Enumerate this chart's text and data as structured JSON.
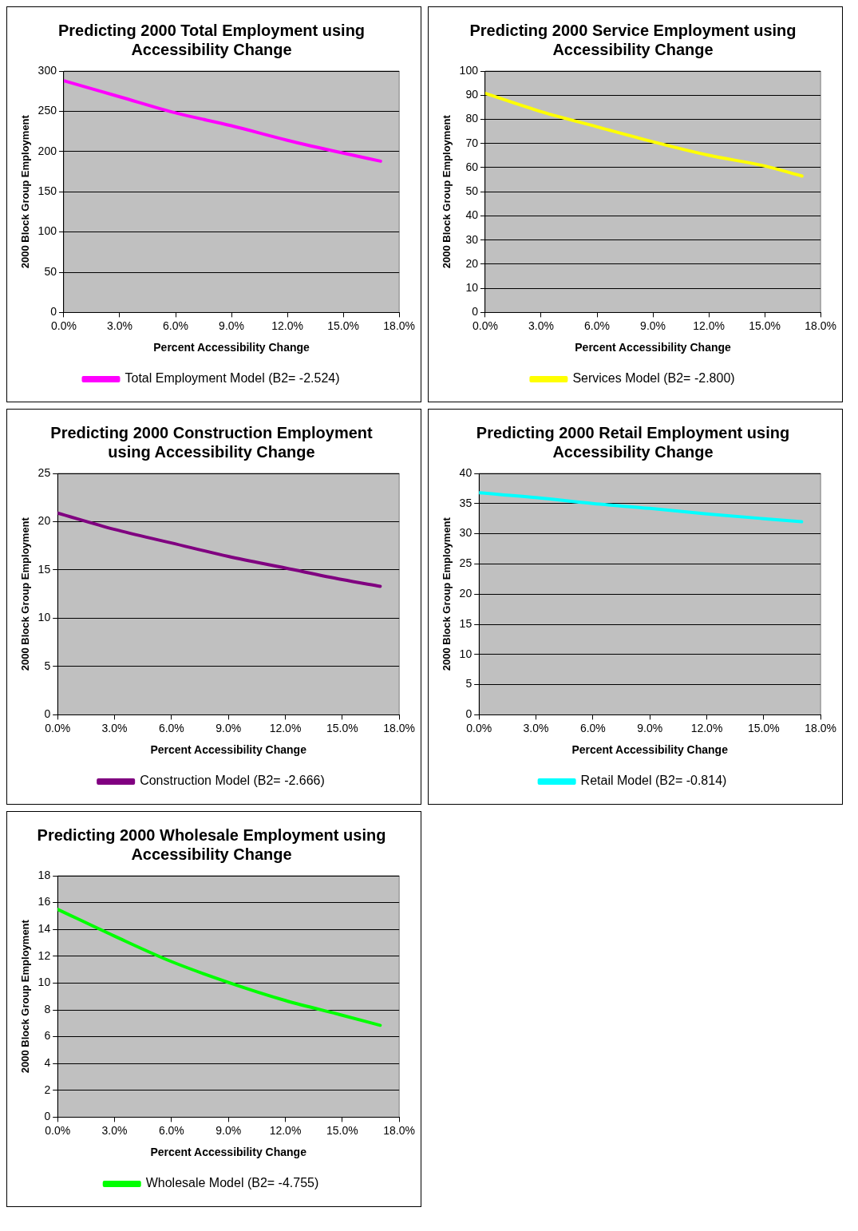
{
  "chart_data": [
    {
      "type": "line",
      "title": "Predicting 2000 Total Employment using Accessibility Change",
      "xlabel": "Percent Accessibility Change",
      "ylabel": "2000 Block Group Employment",
      "x": [
        0,
        3,
        6,
        9,
        12,
        15,
        17
      ],
      "series": [
        {
          "name": "Total Employment Model (B2= -2.524)",
          "color": "#ff00ff",
          "values": [
            288,
            268,
            248,
            232,
            214,
            198,
            188
          ]
        }
      ],
      "xlim": [
        0,
        18
      ],
      "xticks": [
        {
          "value": 0,
          "label": "0.0%"
        },
        {
          "value": 3,
          "label": "3.0%"
        },
        {
          "value": 6,
          "label": "6.0%"
        },
        {
          "value": 9,
          "label": "9.0%"
        },
        {
          "value": 12,
          "label": "12.0%"
        },
        {
          "value": 15,
          "label": "15.0%"
        },
        {
          "value": 18,
          "label": "18.0%"
        }
      ],
      "ylim": [
        0,
        300
      ],
      "yticks": [
        0,
        50,
        100,
        150,
        200,
        250,
        300
      ],
      "grid": "y",
      "legend": "bottom",
      "marker": "none",
      "line_style": "solid"
    },
    {
      "type": "line",
      "title": "Predicting 2000 Service Employment using Accessibility Change",
      "xlabel": "Percent Accessibility Change",
      "ylabel": "2000 Block Group Employment",
      "x": [
        0,
        3,
        6,
        9,
        12,
        15,
        17
      ],
      "series": [
        {
          "name": "Services Model (B2= -2.800)",
          "color": "#ffff00",
          "values": [
            90.8,
            83.2,
            76.9,
            70.7,
            65.1,
            60.7,
            56.5
          ]
        }
      ],
      "xlim": [
        0,
        18
      ],
      "xticks": [
        {
          "value": 0,
          "label": "0.0%"
        },
        {
          "value": 3,
          "label": "3.0%"
        },
        {
          "value": 6,
          "label": "6.0%"
        },
        {
          "value": 9,
          "label": "9.0%"
        },
        {
          "value": 12,
          "label": "12.0%"
        },
        {
          "value": 15,
          "label": "15.0%"
        },
        {
          "value": 18,
          "label": "18.0%"
        }
      ],
      "ylim": [
        0,
        100
      ],
      "yticks": [
        0,
        10,
        20,
        30,
        40,
        50,
        60,
        70,
        80,
        90,
        100
      ],
      "grid": "y",
      "legend": "bottom",
      "marker": "none",
      "line_style": "solid"
    },
    {
      "type": "line",
      "title": "Predicting 2000 Construction Employment using Accessibility Change",
      "xlabel": "Percent Accessibility Change",
      "ylabel": "2000 Block Group Employment",
      "x": [
        0,
        3,
        6,
        9,
        12,
        15,
        17
      ],
      "series": [
        {
          "name": "Construction Model (B2= -2.666)",
          "color": "#800080",
          "values": [
            20.9,
            19.2,
            17.8,
            16.4,
            15.2,
            14.0,
            13.3
          ]
        }
      ],
      "xlim": [
        0,
        18
      ],
      "xticks": [
        {
          "value": 0,
          "label": "0.0%"
        },
        {
          "value": 3,
          "label": "3.0%"
        },
        {
          "value": 6,
          "label": "6.0%"
        },
        {
          "value": 9,
          "label": "9.0%"
        },
        {
          "value": 12,
          "label": "12.0%"
        },
        {
          "value": 15,
          "label": "15.0%"
        },
        {
          "value": 18,
          "label": "18.0%"
        }
      ],
      "ylim": [
        0,
        25
      ],
      "yticks": [
        0,
        5,
        10,
        15,
        20,
        25
      ],
      "grid": "y",
      "legend": "bottom",
      "marker": "none",
      "line_style": "solid"
    },
    {
      "type": "line",
      "title": "Predicting 2000 Retail Employment using Accessibility Change",
      "xlabel": "Percent Accessibility Change",
      "ylabel": "2000 Block Group Employment",
      "x": [
        0,
        3,
        6,
        9,
        12,
        15,
        17
      ],
      "series": [
        {
          "name": "Retail Model (B2= -0.814)",
          "color": "#00ffff",
          "values": [
            36.8,
            36.0,
            35.0,
            34.2,
            33.3,
            32.5,
            32.0
          ]
        }
      ],
      "xlim": [
        0,
        18
      ],
      "xticks": [
        {
          "value": 0,
          "label": "0.0%"
        },
        {
          "value": 3,
          "label": "3.0%"
        },
        {
          "value": 6,
          "label": "6.0%"
        },
        {
          "value": 9,
          "label": "9.0%"
        },
        {
          "value": 12,
          "label": "12.0%"
        },
        {
          "value": 15,
          "label": "15.0%"
        },
        {
          "value": 18,
          "label": "18.0%"
        }
      ],
      "ylim": [
        0,
        40
      ],
      "yticks": [
        0,
        5,
        10,
        15,
        20,
        25,
        30,
        35,
        40
      ],
      "grid": "y",
      "legend": "bottom",
      "marker": "none",
      "line_style": "solid"
    },
    {
      "type": "line",
      "title": "Predicting 2000 Wholesale Employment using Accessibility Change",
      "xlabel": "Percent Accessibility Change",
      "ylabel": "2000 Block Group Employment",
      "x": [
        0,
        3,
        6,
        9,
        12,
        15,
        17
      ],
      "series": [
        {
          "name": "Wholesale Model (B2= -4.755)",
          "color": "#00ff00",
          "values": [
            15.5,
            13.5,
            11.6,
            10.05,
            8.7,
            7.6,
            6.85
          ]
        }
      ],
      "xlim": [
        0,
        18
      ],
      "xticks": [
        {
          "value": 0,
          "label": "0.0%"
        },
        {
          "value": 3,
          "label": "3.0%"
        },
        {
          "value": 6,
          "label": "6.0%"
        },
        {
          "value": 9,
          "label": "9.0%"
        },
        {
          "value": 12,
          "label": "12.0%"
        },
        {
          "value": 15,
          "label": "15.0%"
        },
        {
          "value": 18,
          "label": "18.0%"
        }
      ],
      "ylim": [
        0,
        18
      ],
      "yticks": [
        0,
        2,
        4,
        6,
        8,
        10,
        12,
        14,
        16,
        18
      ],
      "grid": "y",
      "legend": "bottom",
      "marker": "none",
      "line_style": "solid"
    }
  ]
}
